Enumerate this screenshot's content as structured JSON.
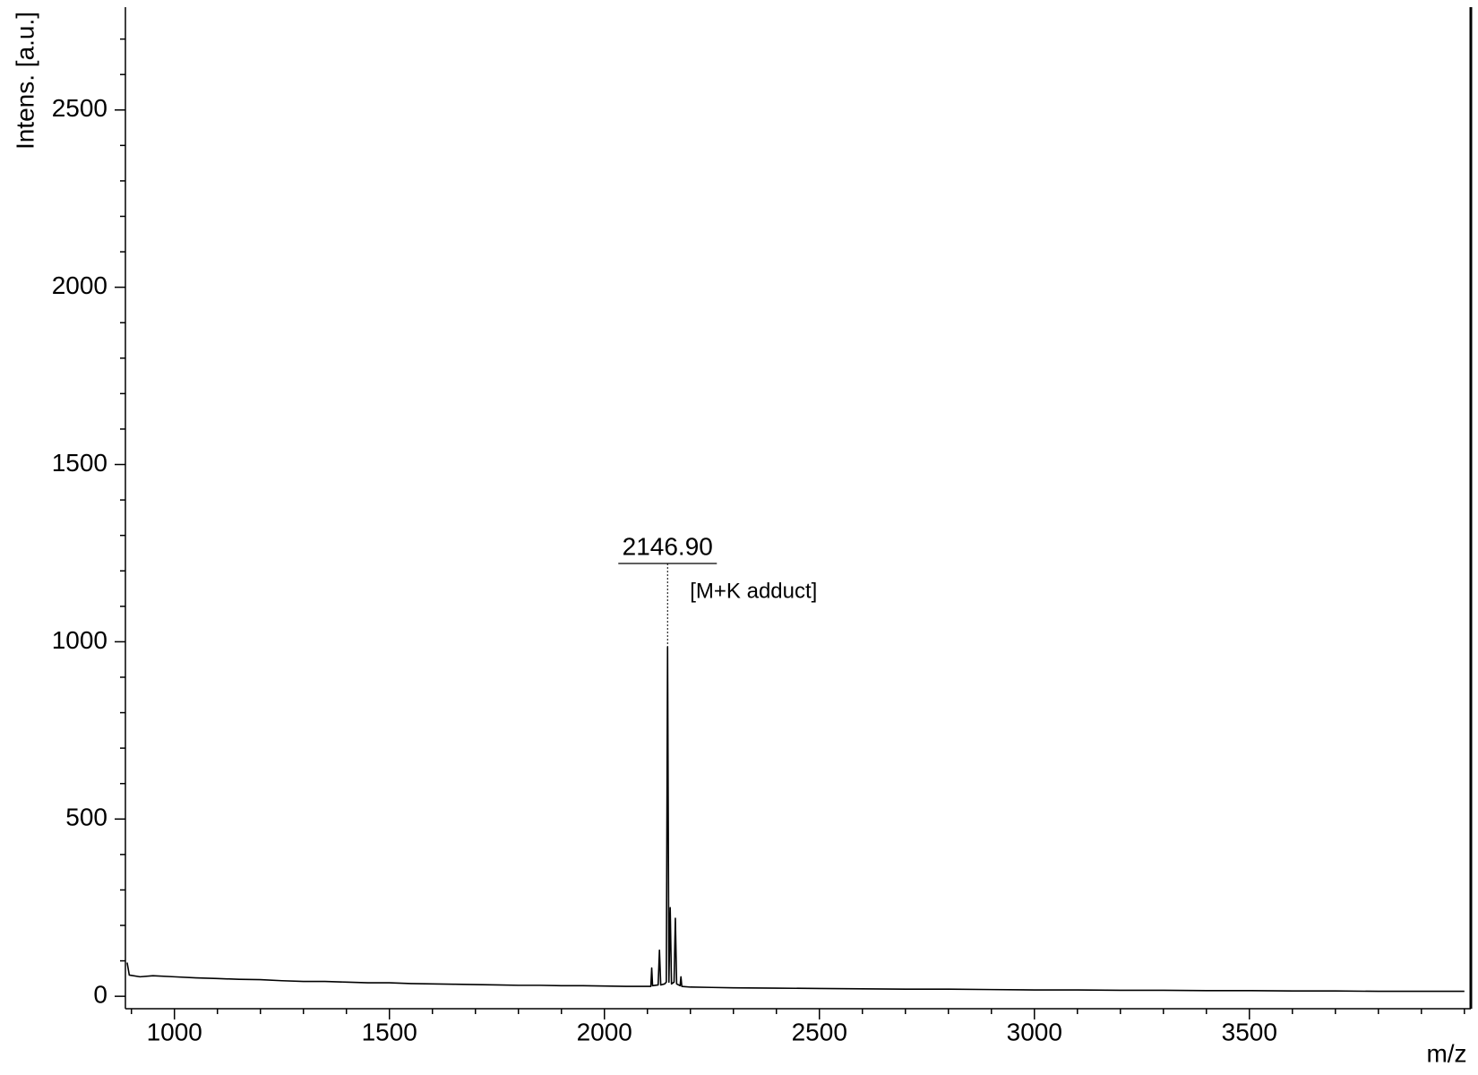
{
  "chart_data": {
    "type": "line",
    "y_label": "Intens. [a.u.]",
    "x_label": "m/z",
    "x": [
      890,
      895,
      920,
      950,
      1000,
      1050,
      1100,
      1150,
      1200,
      1250,
      1300,
      1350,
      1400,
      1450,
      1500,
      1550,
      1600,
      1650,
      1700,
      1750,
      1800,
      1850,
      1900,
      1950,
      2000,
      2050,
      2090,
      2108,
      2110,
      2112,
      2125,
      2128,
      2131,
      2140,
      2144,
      2146.9,
      2150,
      2153,
      2156,
      2162,
      2165,
      2168,
      2176,
      2178,
      2180,
      2200,
      2250,
      2300,
      2400,
      2500,
      2600,
      2700,
      2800,
      2900,
      3000,
      3100,
      3200,
      3300,
      3400,
      3500,
      3600,
      3700,
      3800,
      3900,
      4000
    ],
    "series": [
      {
        "color": "#000000",
        "values": [
          95,
          60,
          55,
          58,
          55,
          52,
          50,
          48,
          47,
          44,
          42,
          42,
          40,
          38,
          38,
          36,
          35,
          34,
          33,
          32,
          31,
          31,
          30,
          30,
          29,
          28,
          28,
          28,
          80,
          30,
          32,
          130,
          32,
          35,
          40,
          985,
          40,
          250,
          35,
          40,
          220,
          35,
          30,
          55,
          28,
          26,
          25,
          24,
          23,
          22,
          21,
          20,
          20,
          19,
          18,
          18,
          17,
          17,
          16,
          16,
          15,
          15,
          14,
          14,
          14
        ]
      }
    ],
    "annotations": [
      {
        "x": 2146.9,
        "label": "2146.90",
        "note": "[M+K adduct]"
      }
    ],
    "xlim": [
      886,
      4015
    ],
    "ylim": [
      -35,
      2790
    ],
    "xticks": [
      1000,
      1500,
      2000,
      2500,
      3000,
      3500
    ],
    "yticks": [
      0,
      500,
      1000,
      1500,
      2000,
      2500
    ],
    "xminorticks": [
      900,
      1100,
      1200,
      1300,
      1400,
      1600,
      1700,
      1800,
      1900,
      2100,
      2200,
      2300,
      2400,
      2600,
      2700,
      2800,
      2900,
      3100,
      3200,
      3300,
      3400,
      3600,
      3700,
      3800,
      3900,
      4000
    ],
    "yminorticks": [
      100,
      200,
      300,
      400,
      600,
      700,
      800,
      900,
      1100,
      1200,
      1300,
      1400,
      1600,
      1700,
      1800,
      1900,
      2100,
      2200,
      2300,
      2400,
      2600,
      2700
    ]
  }
}
